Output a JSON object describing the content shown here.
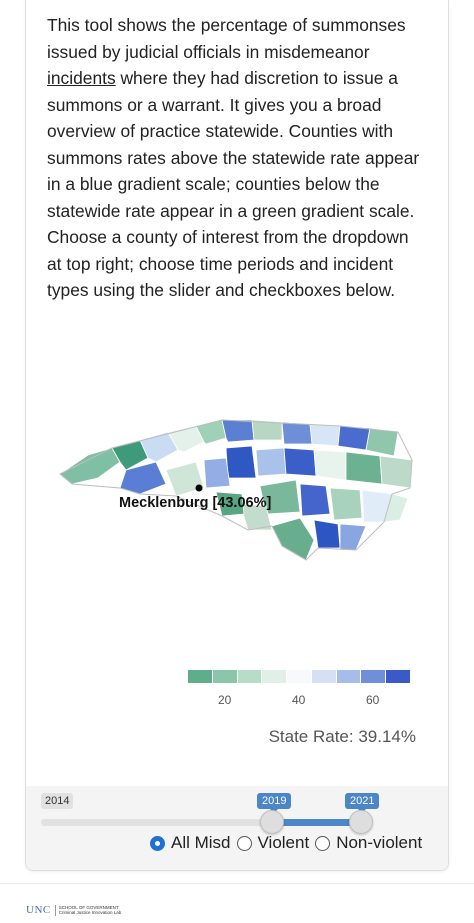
{
  "intro": {
    "before_link": "This tool shows the percentage of summonses issued by judicial officials in misdemeanor ",
    "link_text": "incidents",
    "after_link": " where they had discretion to issue a summons or a warrant. It gives you a broad overview of practice statewide. Counties with summons rates above the statewide rate appear in a blue gradient scale; counties below the statewide rate appear in a green gradient scale. Choose a county of interest from the dropdown at top right; choose time periods and incident types using the slider and checkboxes below."
  },
  "map": {
    "callout_label": "Mecklenburg [43.06%]",
    "counties": [
      {
        "id": "c1",
        "color": "#7fbfa6"
      },
      {
        "id": "c2",
        "color": "#3d9a7b"
      },
      {
        "id": "c3",
        "color": "#c9dcf2"
      },
      {
        "id": "c4",
        "color": "#e4f1ea"
      },
      {
        "id": "c5",
        "color": "#9fd0b8"
      },
      {
        "id": "c6",
        "color": "#5b7fd1"
      },
      {
        "id": "c7",
        "color": "#2f58c4"
      },
      {
        "id": "c8",
        "color": "#b7d6c4"
      },
      {
        "id": "c9",
        "color": "#6c8fd8"
      },
      {
        "id": "c10",
        "color": "#d6e6f6"
      },
      {
        "id": "c11",
        "color": "#4a6ccf"
      },
      {
        "id": "c12",
        "color": "#8fc6ac"
      },
      {
        "id": "c13",
        "color": "#a9c2ea"
      },
      {
        "id": "c14",
        "color": "#3b5fc9"
      },
      {
        "id": "c15",
        "color": "#e8f3ee"
      },
      {
        "id": "c16",
        "color": "#6cb292"
      },
      {
        "id": "c17",
        "color": "#bcd9c9"
      },
      {
        "id": "c18",
        "color": "#5a7ed3"
      },
      {
        "id": "c19",
        "color": "#cfe5d8"
      },
      {
        "id": "c20",
        "color": "#93aee4"
      },
      {
        "id": "c21",
        "color": "#7ab89b"
      },
      {
        "id": "c22",
        "color": "#4466cc"
      },
      {
        "id": "c23",
        "color": "#a8d2bd"
      },
      {
        "id": "c24",
        "color": "#e0ecf8"
      },
      {
        "id": "c25",
        "color": "#68ad8d"
      },
      {
        "id": "c26",
        "color": "#2e56c2"
      },
      {
        "id": "c27",
        "color": "#c3dccd"
      },
      {
        "id": "c28",
        "color": "#8aa6e0"
      },
      {
        "id": "c29",
        "color": "#58a582"
      },
      {
        "id": "c30",
        "color": "#dbeee4"
      }
    ]
  },
  "legend": {
    "colors": [
      "#5fae8b",
      "#8cc6aa",
      "#b7dcc8",
      "#def0e7",
      "#f7f9fd",
      "#d5e0f4",
      "#a7bde9",
      "#6f8fd9",
      "#3a5bc7"
    ],
    "ticks": [
      "20",
      "40",
      "60"
    ]
  },
  "state_rate": "State Rate: 39.14%",
  "slider": {
    "min_label": "2014",
    "start_label": "2019",
    "end_label": "2021"
  },
  "incident_types": {
    "options": [
      "All Misd",
      "Violent",
      "Non-violent"
    ],
    "selected": "All Misd"
  },
  "footer": {
    "logo_text": "UNC",
    "school_text": "SCHOOL OF GOVERNMENT",
    "lab_text": "Criminal Justice Innovation Lab"
  }
}
